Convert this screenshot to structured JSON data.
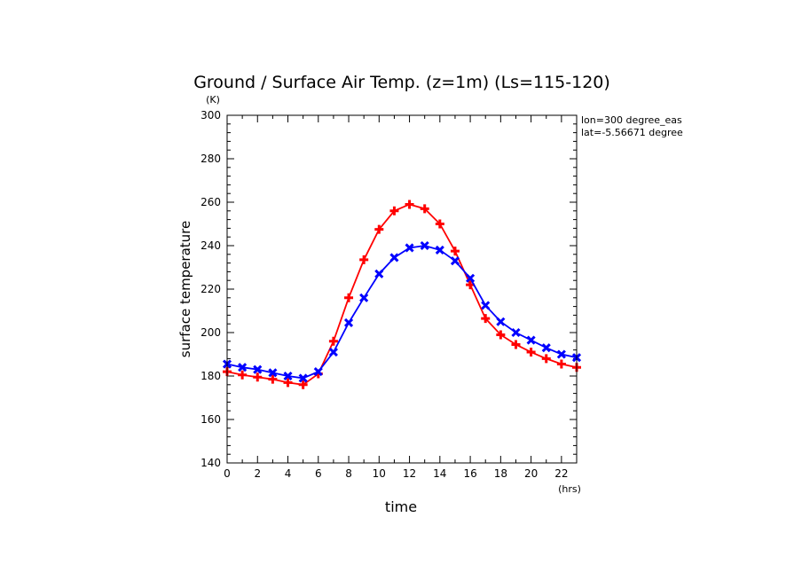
{
  "chart_data": {
    "type": "line",
    "title": "Ground / Surface Air Temp. (z=1m) (Ls=115-120)",
    "ylabel": "surface temperature",
    "yunit": "(K)",
    "xlabel": "time",
    "xunit": "(hrs)",
    "annotation": [
      "lon=300 degree_eas",
      "lat=-5.56671 degree"
    ],
    "xlim": [
      0,
      23
    ],
    "ylim": [
      140,
      300
    ],
    "xticks": [
      0,
      2,
      4,
      6,
      8,
      10,
      12,
      14,
      16,
      18,
      20,
      22
    ],
    "yticks": [
      140,
      160,
      180,
      200,
      220,
      240,
      260,
      280,
      300
    ],
    "x": [
      0,
      1,
      2,
      3,
      4,
      5,
      6,
      7,
      8,
      9,
      10,
      11,
      12,
      13,
      14,
      15,
      16,
      17,
      18,
      19,
      20,
      21,
      22,
      23
    ],
    "series": [
      {
        "color": "#ff0000",
        "marker": "plus",
        "values": [
          182,
          180.5,
          179.5,
          178.5,
          177,
          176,
          181,
          196,
          216,
          233.5,
          247.5,
          256,
          259,
          257,
          250,
          237.5,
          222,
          206.5,
          199,
          194.5,
          191,
          188,
          185.5,
          184
        ]
      },
      {
        "color": "#0000ff",
        "marker": "x",
        "values": [
          185.5,
          184,
          183,
          181.5,
          180,
          179,
          182,
          191,
          204.5,
          216,
          227,
          234.5,
          239,
          240,
          238,
          233,
          225,
          212.5,
          205,
          200,
          196.5,
          193,
          190,
          188.5
        ]
      }
    ]
  }
}
